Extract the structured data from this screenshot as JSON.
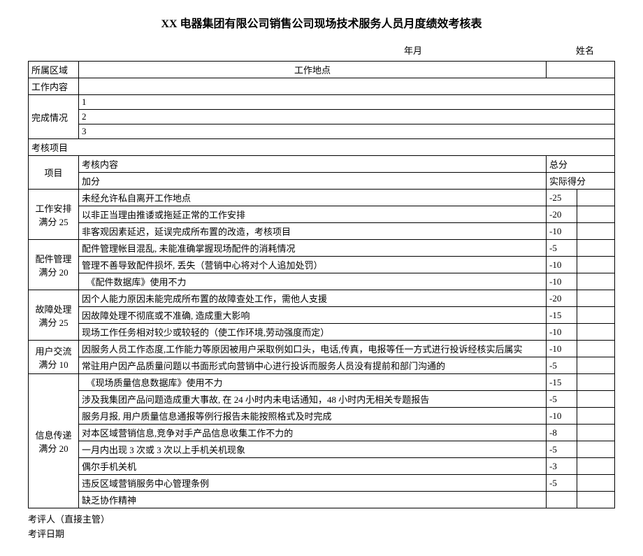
{
  "title": "XX 电器集团有限公司销售公司现场技术服务人员月度绩效考核表",
  "meta": {
    "date_label": "年月",
    "name_label": "姓名"
  },
  "header_rows": {
    "region": "所属区域",
    "workplace": "工作地点",
    "work_content": "工作内容",
    "completion": "完成情况",
    "assess_items": "考核项目"
  },
  "subheader": {
    "project": "项目",
    "content": "考核内容",
    "total": "总分",
    "bonus": "加分",
    "actual": "实际得分"
  },
  "sections": [
    {
      "name": "工作安排",
      "full": "满分 25",
      "rows": [
        {
          "text": "未经允许私自离开工作地点",
          "score": "-25"
        },
        {
          "text": "以非正当理由推诿或拖延正常的工作安排",
          "score": "-20"
        },
        {
          "text": "非客观因素延迟，延误完成所布置的改造，考核项目",
          "score": "-10"
        }
      ]
    },
    {
      "name": "配件管理",
      "full": "满分 20",
      "rows": [
        {
          "text": "配件管理帐目混乱, 未能准确掌握现场配件的消耗情况",
          "score": "-5"
        },
        {
          "text": "管理不善导致配件损坏, 丢失（营销中心将对个人追加处罚）",
          "score": "-10"
        },
        {
          "text": "　《配件数据库》使用不力",
          "score": "-10"
        }
      ]
    },
    {
      "name": "故障处理",
      "full": "满分 25",
      "rows": [
        {
          "text": "因个人能力原因未能完成所布置的故障查处工作，需他人支援",
          "score": "-20"
        },
        {
          "text": "因故障处理不彻底或不准确, 造成重大影响",
          "score": "-15"
        },
        {
          "text": "现场工作任务相对较少或较轻的（使工作环境,劳动强度而定）",
          "score": "-10"
        }
      ]
    },
    {
      "name": "用户交流",
      "full": "满分 10",
      "rows": [
        {
          "text": "因服务人员工作态度,工作能力等原因被用户采取例如口头，电话,传真，电报等任一方式进行投诉经核实后属实",
          "score": "-10"
        },
        {
          "text": "常驻用户因产品质量问题以书面形式向营销中心进行投诉而服务人员没有提前和部门沟通的",
          "score": "-5"
        }
      ]
    },
    {
      "name": "信息传递",
      "full": "满分 20",
      "rows": [
        {
          "text": "　《现场质量信息数据库》使用不力",
          "score": "-15"
        },
        {
          "text": "涉及我集团产品问题造成重大事故, 在 24 小时内未电话通知，48 小时内无相关专题报告",
          "score": "-5"
        },
        {
          "text": "服务月报, 用户质量信息通报等例行报告未能按照格式及时完成",
          "score": "-10"
        },
        {
          "text": "对本区域营销信息,竞争对手产品信息收集工作不力的",
          "score": "-8"
        },
        {
          "text": "一月内出现 3 次或 3 次以上手机关机现象",
          "score": "-5"
        },
        {
          "text": "偶尔手机关机",
          "score": "-3"
        },
        {
          "text": "违反区域营销服务中心管理条例",
          "score": "-5"
        },
        {
          "text": "缺乏协作精神",
          "score": ""
        }
      ]
    }
  ],
  "footer": {
    "reviewer": "考评人（直接主管）",
    "review_date": "考评日期"
  }
}
